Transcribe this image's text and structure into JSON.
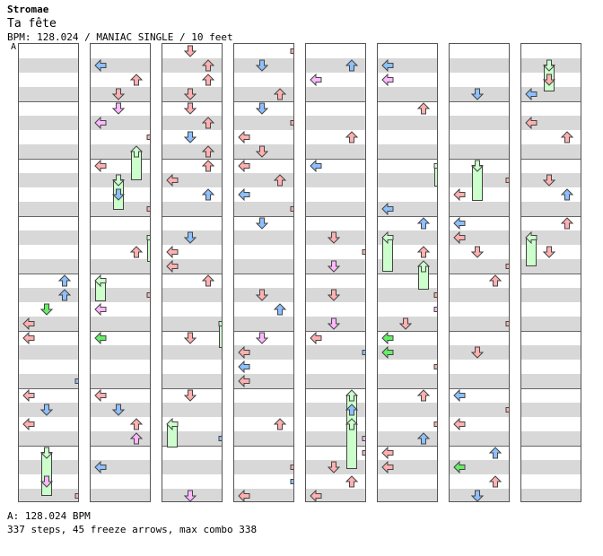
{
  "header": {
    "artist": "Stromae",
    "song": "Ta fête",
    "info": "BPM: 128.024 / MANIAC SINGLE / 10 feet",
    "start_marker": "A"
  },
  "footer": {
    "bpm_line": "A: 128.024 BPM",
    "stats_line": "337 steps, 45 freeze arrows, max combo 338"
  },
  "colors": {
    "left": "#ffbcbc",
    "down": "#9ccaff",
    "up": "#ffbcbc",
    "right": "#ffbcbc",
    "red": "#ffb0b0",
    "blue": "#8cc0ff",
    "purple": "#ffb8ff",
    "green": "#66ee66",
    "freeze": "#ccffcc",
    "stripe": "#d8d8d8"
  },
  "chart_data": {
    "type": "table",
    "steps": 337,
    "freeze_arrows": 45,
    "max_combo": 338,
    "bpm": 128.024,
    "difficulty": "MANIAC SINGLE",
    "feet": 10,
    "columns": 8,
    "measures_per_column": 8
  }
}
